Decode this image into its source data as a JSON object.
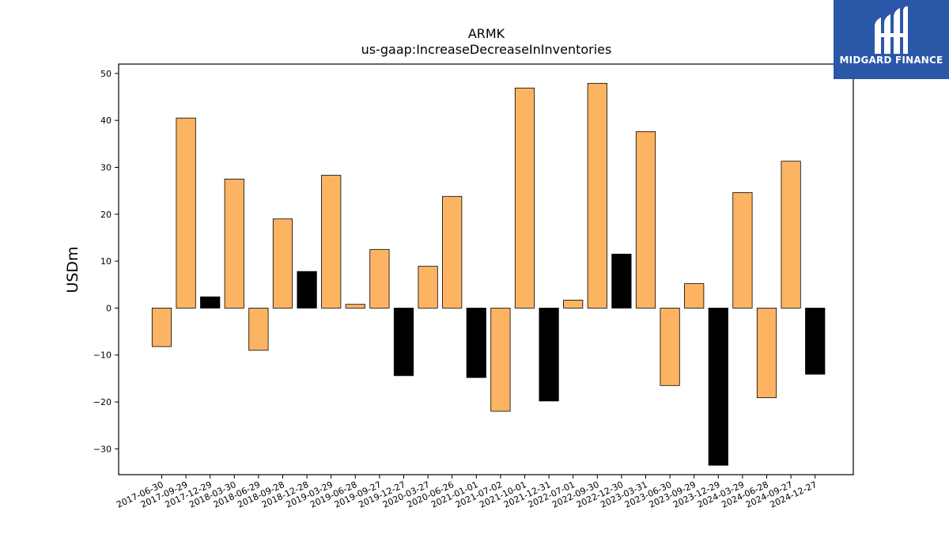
{
  "brand": {
    "name": "MIDGARD FINANCE"
  },
  "colors": {
    "positive_bar": "#fdb462",
    "highlight_bar": "#000000",
    "logo_bg": "#2a57a8"
  },
  "chart_data": {
    "type": "bar",
    "title": "ARMK",
    "subtitle": "us-gaap:IncreaseDecreaseInInventories",
    "ylabel": "USDm",
    "xlabel": "",
    "ylim": [
      -35.5,
      52
    ],
    "yticks": [
      -30,
      -20,
      -10,
      0,
      10,
      20,
      30,
      40,
      50
    ],
    "grid": false,
    "categories": [
      "2017-06-30",
      "2017-09-29",
      "2017-12-29",
      "2018-03-30",
      "2018-06-29",
      "2018-09-28",
      "2018-12-28",
      "2019-03-29",
      "2019-06-28",
      "2019-09-27",
      "2019-12-27",
      "2020-03-27",
      "2020-06-26",
      "2021-01-01",
      "2021-07-02",
      "2021-10-01",
      "2021-12-31",
      "2022-07-01",
      "2022-09-30",
      "2022-12-30",
      "2023-03-31",
      "2023-06-30",
      "2023-09-29",
      "2023-12-29",
      "2024-03-29",
      "2024-06-28",
      "2024-09-27",
      "2024-12-27"
    ],
    "values": [
      -8.2,
      40.5,
      2.4,
      27.5,
      -9.0,
      19.0,
      7.8,
      28.3,
      0.8,
      12.5,
      -14.4,
      8.9,
      23.8,
      -14.8,
      -22.0,
      46.9,
      -19.8,
      1.7,
      47.9,
      11.5,
      37.6,
      -16.5,
      5.2,
      -33.5,
      24.6,
      -19.1,
      31.3,
      -14.1
    ],
    "highlighted": [
      false,
      false,
      true,
      false,
      false,
      false,
      true,
      false,
      false,
      false,
      true,
      false,
      false,
      true,
      false,
      false,
      true,
      false,
      false,
      true,
      false,
      false,
      false,
      true,
      false,
      false,
      false,
      true
    ]
  }
}
